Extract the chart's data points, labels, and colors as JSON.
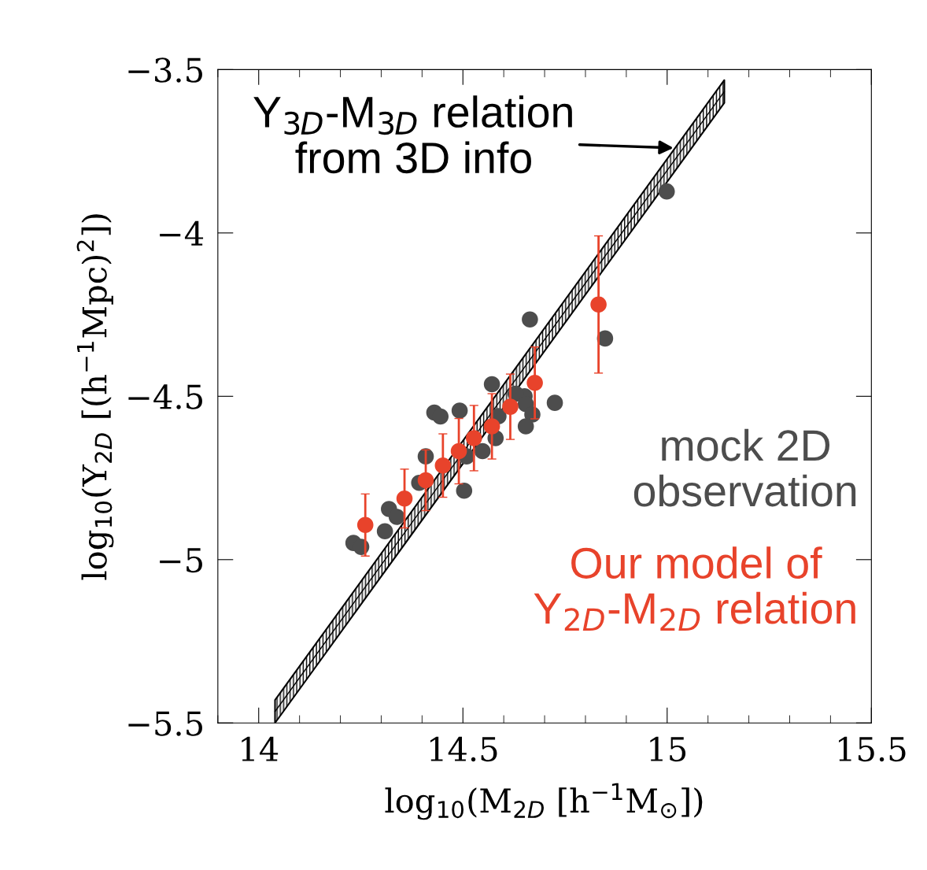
{
  "chart_data": {
    "type": "scatter",
    "xlabel": "log$_{10}$(M$_{2D}$ [h$^{−1}$M$_{⊙}$])",
    "ylabel": "log$_{10}$(Y$_{2D}$ [(h$^{−1}$Mpc)$^{2}$])",
    "xlim": [
      13.9,
      15.5
    ],
    "ylim": [
      -5.5,
      -3.5
    ],
    "xticks": [
      14,
      14.5,
      15,
      15.5
    ],
    "yticks": [
      {
        "value": -5.5,
        "label": "−5.5"
      },
      {
        "value": -5,
        "label": "−5"
      },
      {
        "value": -4.5,
        "label": "−4.5"
      },
      {
        "value": -4,
        "label": "−4"
      },
      {
        "value": -3.5,
        "label": "−3.5"
      }
    ],
    "grid": false,
    "legend": "bottom right",
    "series": [
      {
        "type": "line",
        "color": "#000000",
        "x": [
          14.04,
          15.14
        ],
        "values": [
          -5.465,
          -3.567
        ],
        "lower": [
          -5.5,
          -3.602
        ],
        "upper": [
          -5.43,
          -3.532
        ]
      },
      {
        "type": "scatter",
        "name": "mock 2D\nobservation",
        "marker": "circle",
        "color": "#4d4d4d",
        "x": [
          14.664,
          14.725,
          14.571,
          14.43,
          14.445,
          14.492,
          14.651,
          14.629,
          14.654,
          14.67,
          14.654,
          14.587,
          14.58,
          14.548,
          14.509,
          14.409,
          14.503,
          14.393,
          14.319,
          14.338,
          14.309,
          14.232,
          14.251,
          14.999,
          14.848
        ],
        "values": [
          -4.265,
          -4.52,
          -4.463,
          -4.55,
          -4.562,
          -4.544,
          -4.5,
          -4.492,
          -4.524,
          -4.556,
          -4.592,
          -4.561,
          -4.628,
          -4.668,
          -4.684,
          -4.684,
          -4.789,
          -4.765,
          -4.845,
          -4.869,
          -4.913,
          -4.949,
          -4.961,
          -3.873,
          -4.323
        ]
      },
      {
        "type": "scatter",
        "name": "Our model of\nY$_{2D}$-M$_{2D}$ relation",
        "marker": "circle",
        "color": "#e8432b",
        "x": [
          14.261,
          14.357,
          14.409,
          14.451,
          14.49,
          14.527,
          14.571,
          14.616,
          14.676,
          14.832
        ],
        "values": [
          -4.894,
          -4.813,
          -4.757,
          -4.712,
          -4.668,
          -4.628,
          -4.592,
          -4.532,
          -4.459,
          -4.219
        ],
        "errors": [
          0.095,
          0.09,
          0.093,
          0.097,
          0.1,
          0.1,
          0.1,
          0.1,
          0.11,
          0.21
        ]
      }
    ],
    "annotations": [
      {
        "text": "Y$_{3D}$-M$_{3D}$ relation\nfrom 3D info",
        "x": 15.021,
        "y": -3.74
      }
    ]
  }
}
